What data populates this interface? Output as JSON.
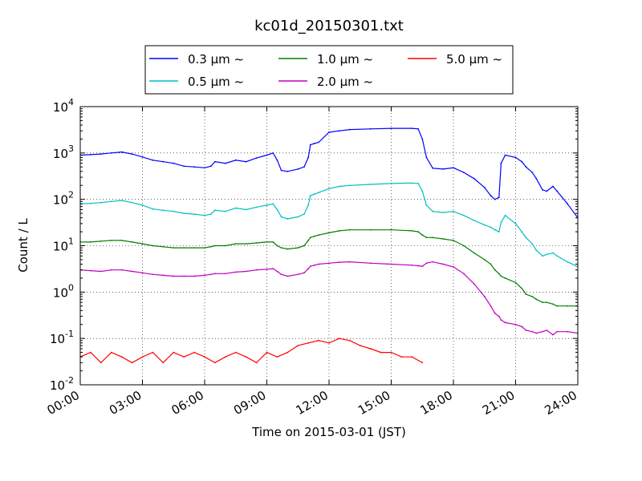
{
  "chart_data": {
    "type": "line",
    "title": "kc01d_20150301.txt",
    "xlabel": "Time on 2015-03-01 (JST)",
    "ylabel": "Count / L",
    "y_scale": "log",
    "ylim": [
      0.01,
      10000
    ],
    "xlim": [
      0,
      24
    ],
    "x_tick_labels": [
      "00:00",
      "03:00",
      "06:00",
      "09:00",
      "12:00",
      "15:00",
      "18:00",
      "21:00",
      "24:00"
    ],
    "y_tick_labels": [
      {
        "base": "10",
        "exp": "-2"
      },
      {
        "base": "10",
        "exp": "-1"
      },
      {
        "base": "10",
        "exp": "0"
      },
      {
        "base": "10",
        "exp": "1"
      },
      {
        "base": "10",
        "exp": "2"
      },
      {
        "base": "10",
        "exp": "3"
      },
      {
        "base": "10",
        "exp": "4"
      }
    ],
    "grid": true,
    "legend_position": "top-center, above plot",
    "series": [
      {
        "name": "0.3 μm ~",
        "color": "#0000ff",
        "x": [
          0,
          0.5,
          1,
          1.5,
          2,
          2.5,
          3,
          3.5,
          4,
          4.5,
          5,
          5.5,
          6,
          6.3,
          6.5,
          7,
          7.5,
          8,
          8.5,
          9,
          9.3,
          9.5,
          9.7,
          10,
          10.5,
          10.8,
          11,
          11.1,
          11.3,
          11.5,
          12,
          12.5,
          13,
          14,
          15,
          16,
          16.3,
          16.5,
          16.7,
          17,
          17.5,
          18,
          18.5,
          19,
          19.5,
          19.8,
          20,
          20.2,
          20.3,
          20.5,
          21,
          21.3,
          21.5,
          21.8,
          22,
          22.3,
          22.5,
          22.8,
          23,
          23.5,
          24
        ],
        "values": [
          900,
          920,
          950,
          1000,
          1050,
          950,
          820,
          700,
          650,
          600,
          520,
          500,
          480,
          520,
          650,
          600,
          700,
          650,
          780,
          900,
          1000,
          700,
          420,
          400,
          450,
          500,
          800,
          1500,
          1600,
          1700,
          2800,
          3000,
          3200,
          3300,
          3400,
          3400,
          3300,
          2000,
          800,
          470,
          450,
          480,
          380,
          280,
          180,
          120,
          100,
          110,
          600,
          900,
          800,
          650,
          500,
          380,
          280,
          160,
          150,
          190,
          150,
          80,
          40
        ]
      },
      {
        "name": "0.5 μm ~",
        "color": "#00bfbf",
        "x": [
          0,
          0.5,
          1,
          1.5,
          2,
          2.5,
          3,
          3.5,
          4,
          4.5,
          5,
          5.5,
          6,
          6.3,
          6.5,
          7,
          7.5,
          8,
          8.5,
          9,
          9.3,
          9.5,
          9.7,
          10,
          10.5,
          10.8,
          11,
          11.1,
          11.3,
          11.5,
          12,
          12.5,
          13,
          14,
          15,
          16,
          16.3,
          16.5,
          16.7,
          17,
          17.5,
          18,
          18.5,
          19,
          19.5,
          19.8,
          20,
          20.2,
          20.3,
          20.5,
          21,
          21.3,
          21.5,
          21.8,
          22,
          22.3,
          22.5,
          22.8,
          23,
          23.5,
          24
        ],
        "values": [
          80,
          82,
          85,
          90,
          95,
          85,
          75,
          62,
          58,
          55,
          50,
          48,
          45,
          48,
          58,
          55,
          65,
          60,
          68,
          75,
          80,
          60,
          42,
          38,
          42,
          48,
          75,
          120,
          130,
          140,
          170,
          190,
          200,
          210,
          220,
          225,
          220,
          150,
          75,
          55,
          52,
          55,
          45,
          35,
          28,
          25,
          22,
          20,
          32,
          45,
          30,
          20,
          15,
          11,
          8,
          6,
          6.5,
          7,
          6,
          4.5,
          3.5
        ]
      },
      {
        "name": "1.0 μm ~",
        "color": "#008000",
        "x": [
          0,
          0.5,
          1,
          1.5,
          2,
          2.5,
          3,
          3.5,
          4,
          4.5,
          5,
          5.5,
          6,
          6.3,
          6.5,
          7,
          7.5,
          8,
          8.5,
          9,
          9.3,
          9.5,
          9.7,
          10,
          10.5,
          10.8,
          11,
          11.1,
          11.3,
          11.5,
          12,
          12.5,
          13,
          14,
          15,
          16,
          16.3,
          16.5,
          16.7,
          17,
          17.5,
          18,
          18.5,
          19,
          19.5,
          19.8,
          20,
          20.2,
          20.3,
          20.5,
          21,
          21.3,
          21.5,
          21.8,
          22,
          22.3,
          22.5,
          22.8,
          23,
          23.5,
          24
        ],
        "values": [
          12,
          12,
          12.5,
          13,
          13,
          12,
          11,
          10,
          9.5,
          9,
          9,
          9,
          9,
          9.5,
          10,
          10,
          11,
          11,
          11.5,
          12,
          12,
          10,
          9,
          8.5,
          9,
          10,
          13,
          15,
          16,
          17,
          19,
          21,
          22,
          22,
          22,
          21,
          20,
          17,
          15,
          15,
          14,
          13,
          10,
          7,
          5,
          4,
          3,
          2.5,
          2.2,
          2,
          1.6,
          1.2,
          0.9,
          0.8,
          0.7,
          0.6,
          0.6,
          0.55,
          0.5,
          0.5,
          0.5
        ]
      },
      {
        "name": "2.0 μm ~",
        "color": "#bf00bf",
        "x": [
          0,
          0.5,
          1,
          1.5,
          2,
          2.5,
          3,
          3.5,
          4,
          4.5,
          5,
          5.5,
          6,
          6.3,
          6.5,
          7,
          7.5,
          8,
          8.5,
          9,
          9.3,
          9.5,
          9.7,
          10,
          10.5,
          10.8,
          11,
          11.1,
          11.3,
          11.5,
          12,
          12.5,
          13,
          14,
          15,
          16,
          16.3,
          16.5,
          16.7,
          17,
          17.5,
          18,
          18.5,
          19,
          19.5,
          19.8,
          20,
          20.2,
          20.3,
          20.5,
          21,
          21.3,
          21.5,
          21.8,
          22,
          22.3,
          22.5,
          22.8,
          23,
          23.5,
          24
        ],
        "values": [
          3,
          2.9,
          2.8,
          3,
          3,
          2.8,
          2.6,
          2.4,
          2.3,
          2.2,
          2.2,
          2.2,
          2.3,
          2.4,
          2.5,
          2.5,
          2.7,
          2.8,
          3,
          3.1,
          3.2,
          2.8,
          2.4,
          2.2,
          2.4,
          2.6,
          3.2,
          3.6,
          3.8,
          4,
          4.2,
          4.4,
          4.5,
          4.2,
          4,
          3.8,
          3.7,
          3.6,
          4.2,
          4.5,
          4,
          3.5,
          2.5,
          1.5,
          0.8,
          0.5,
          0.35,
          0.3,
          0.25,
          0.22,
          0.2,
          0.18,
          0.15,
          0.14,
          0.13,
          0.14,
          0.15,
          0.12,
          0.14,
          0.14,
          0.13
        ]
      },
      {
        "name": "5.0 μm ~",
        "color": "#ff0000",
        "x": [
          0,
          0.5,
          1,
          1.5,
          2,
          2.5,
          3,
          3.5,
          4,
          4.5,
          5,
          5.5,
          6,
          6.5,
          7,
          7.5,
          8,
          8.5,
          9,
          9.5,
          10,
          10.5,
          11,
          11.5,
          12,
          12.5,
          13,
          13.5,
          14,
          14.5,
          15,
          15.5,
          16,
          16.5
        ],
        "values": [
          0.04,
          0.05,
          0.03,
          0.05,
          0.04,
          0.03,
          0.04,
          0.05,
          0.03,
          0.05,
          0.04,
          0.05,
          0.04,
          0.03,
          0.04,
          0.05,
          0.04,
          0.03,
          0.05,
          0.04,
          0.05,
          0.07,
          0.08,
          0.09,
          0.08,
          0.1,
          0.09,
          0.07,
          0.06,
          0.05,
          0.05,
          0.04,
          0.04,
          0.03
        ]
      }
    ]
  }
}
